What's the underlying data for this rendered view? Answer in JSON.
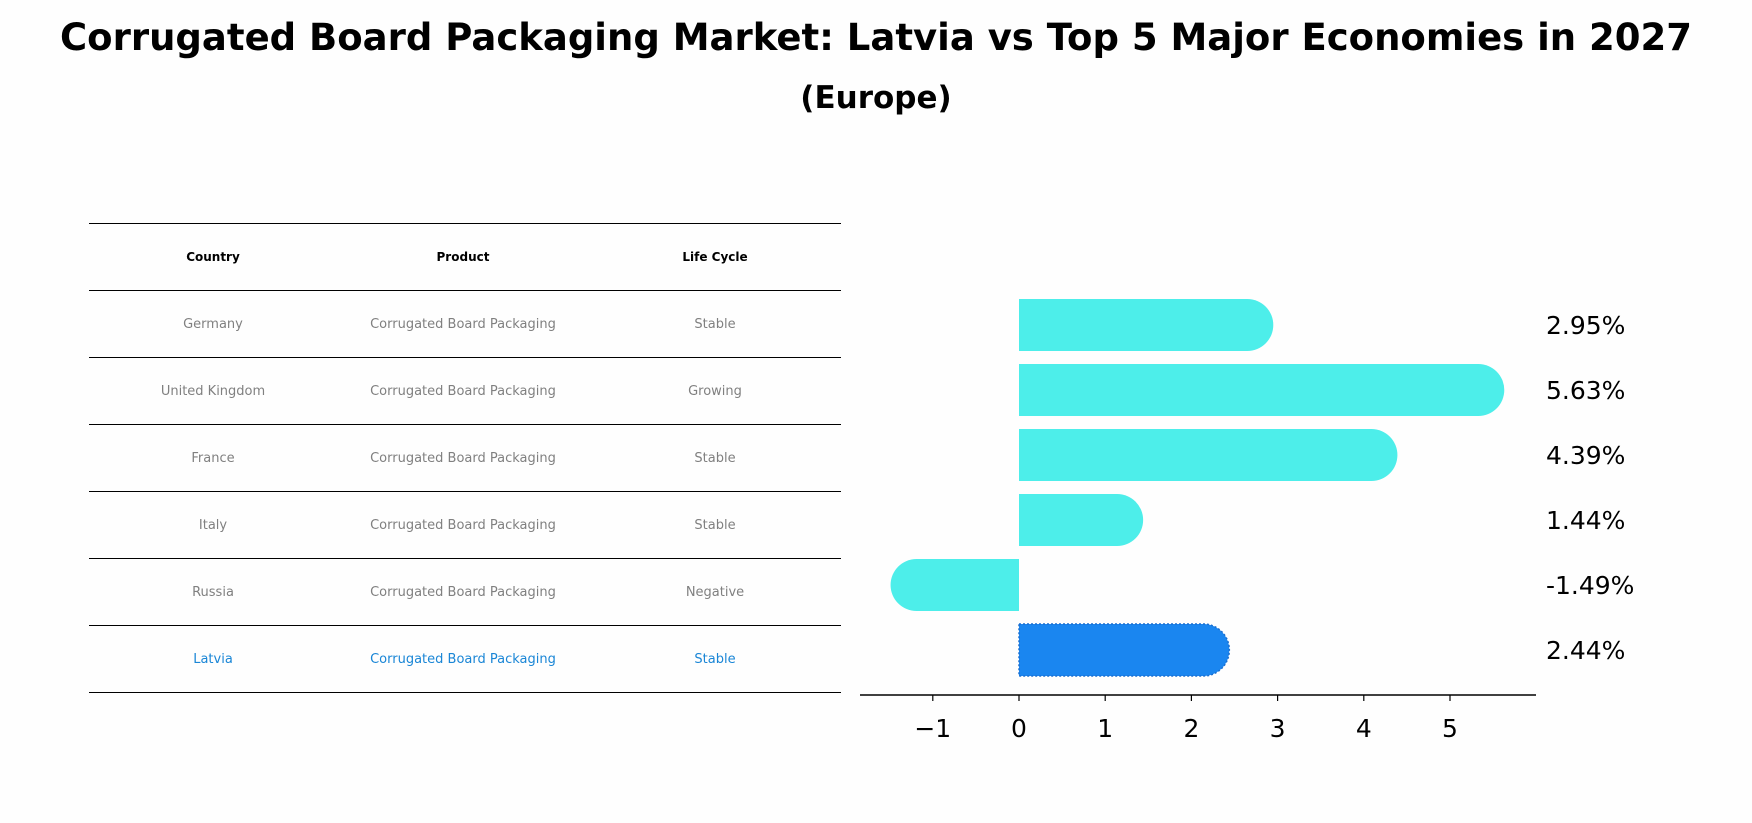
{
  "title": "Corrugated Board Packaging Market: Latvia vs Top 5 Major Economies in 2027",
  "subtitle": "(Europe)",
  "table": {
    "headers": [
      "Country",
      "Product",
      "Life Cycle"
    ],
    "rows": [
      [
        "Germany",
        "Corrugated Board Packaging",
        "Stable"
      ],
      [
        "United Kingdom",
        "Corrugated Board Packaging",
        "Growing"
      ],
      [
        "France",
        "Corrugated Board Packaging",
        "Stable"
      ],
      [
        "Italy",
        "Corrugated Board Packaging",
        "Stable"
      ],
      [
        "Russia",
        "Corrugated Board Packaging",
        "Negative"
      ],
      [
        "Latvia",
        "Corrugated Board Packaging",
        "Stable"
      ]
    ],
    "highlight_row": 5,
    "text_color": "#808080",
    "highlight_color": "#1a86d6"
  },
  "chart_data": {
    "type": "bar",
    "orientation": "horizontal",
    "categories": [
      "Germany",
      "United Kingdom",
      "France",
      "Italy",
      "Russia",
      "Latvia"
    ],
    "values": [
      2.95,
      5.63,
      4.39,
      1.44,
      -1.49,
      2.44
    ],
    "value_labels": [
      "2.95%",
      "5.63%",
      "4.39%",
      "1.44%",
      "-1.49%",
      "2.44%"
    ],
    "xlim": [
      -1.85,
      6.0
    ],
    "xticks": [
      -1,
      0,
      1,
      2,
      3,
      4,
      5
    ],
    "xtick_labels": [
      "−1",
      "0",
      "1",
      "2",
      "3",
      "4",
      "5"
    ],
    "grid": false,
    "colors": {
      "default": "#4deeea",
      "highlight": "#1a86f0"
    },
    "highlight_index": 5
  }
}
